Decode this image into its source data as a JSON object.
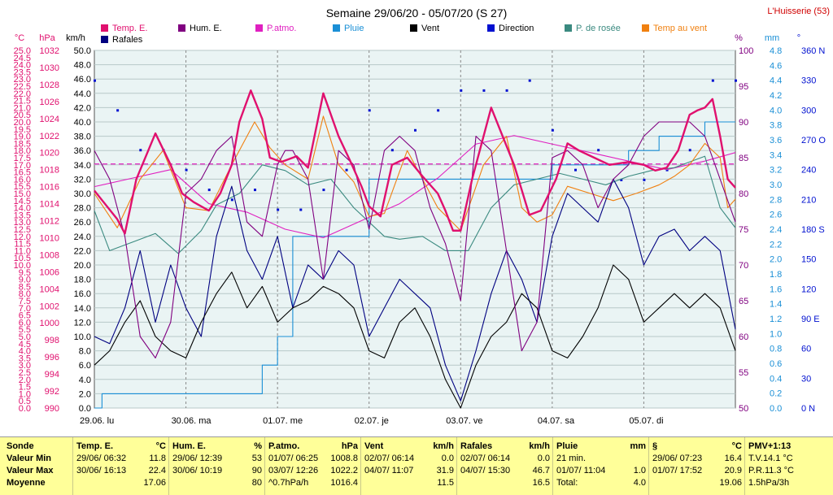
{
  "header": {
    "title": "Semaine 29/06/20 - 05/07/20 (S 27)",
    "station": "L'Huisserie (53)"
  },
  "axis_units": [
    "°C",
    "hPa",
    "km/h",
    "%",
    "mm",
    "°"
  ],
  "legend": [
    {
      "label": "Temp. E.",
      "color": "#e0106e"
    },
    {
      "label": "Hum. E.",
      "color": "#800080"
    },
    {
      "label": "P.atmo.",
      "color": "#e020c0"
    },
    {
      "label": "Pluie",
      "color": "#1a8fd6"
    },
    {
      "label": "Vent",
      "color": "#000000"
    },
    {
      "label": "Direction",
      "color": "#0010d0"
    },
    {
      "label": "P. de rosée",
      "color": "#3b8a80"
    },
    {
      "label": "Temp au vent",
      "color": "#f08010"
    },
    {
      "label": "Rafales",
      "color": "#000080"
    }
  ],
  "chart_data": {
    "type": "line",
    "x_labels": [
      "29.06. lu",
      "30.06. ma",
      "01.07. me",
      "02.07. je",
      "03.07. ve",
      "04.07. sa",
      "05.07. di"
    ],
    "xlim": [
      0,
      168
    ],
    "axes": {
      "temp_c": {
        "min": 0.0,
        "max": 25.0,
        "step": 0.5,
        "ticks": [
          "0.0",
          "0.5",
          "1.0",
          "1.5",
          "2.0",
          "2.5",
          "3.0",
          "3.5",
          "4.0",
          "4.5",
          "5.0",
          "5.5",
          "6.0",
          "6.5",
          "7.0",
          "7.5",
          "8.0",
          "8.5",
          "9.0",
          "9.5",
          "10.0",
          "10.5",
          "11.0",
          "11.5",
          "12.0",
          "12.5",
          "13.0",
          "13.5",
          "14.0",
          "14.5",
          "15.0",
          "15.5",
          "16.0",
          "16.5",
          "17.0",
          "17.5",
          "18.0",
          "18.5",
          "19.0",
          "19.5",
          "20.0",
          "20.5",
          "21.0",
          "21.5",
          "22.0",
          "22.5",
          "23.0",
          "23.5",
          "24.0",
          "24.5",
          "25.0"
        ]
      },
      "pressure_hpa": {
        "min": 990,
        "max": 1032,
        "ticks": [
          "990",
          "992",
          "994",
          "996",
          "998",
          "1000",
          "1002",
          "1004",
          "1006",
          "1008",
          "1010",
          "1012",
          "1014",
          "1016",
          "1018",
          "1020",
          "1022",
          "1024",
          "1026",
          "1028",
          "1030",
          "1032"
        ]
      },
      "wind_kmh": {
        "min": 0.0,
        "max": 50.0,
        "ticks": [
          "0.0",
          "2.0",
          "4.0",
          "6.0",
          "8.0",
          "10.0",
          "12.0",
          "14.0",
          "16.0",
          "18.0",
          "20.0",
          "22.0",
          "24.0",
          "26.0",
          "28.0",
          "30.0",
          "32.0",
          "34.0",
          "36.0",
          "38.0",
          "40.0",
          "42.0",
          "44.0",
          "46.0",
          "48.0",
          "50.0"
        ]
      },
      "humidity_pct": {
        "min": 50,
        "max": 100,
        "ticks": [
          "50",
          "55",
          "60",
          "65",
          "70",
          "75",
          "80",
          "85",
          "90",
          "95",
          "100"
        ]
      },
      "rain_mm": {
        "min": 0.0,
        "max": 5.0,
        "ticks": [
          "0.0",
          "0.2",
          "0.4",
          "0.6",
          "0.8",
          "1.0",
          "1.2",
          "1.4",
          "1.6",
          "1.8",
          "2.0",
          "2.2",
          "2.4",
          "2.6",
          "2.8",
          "3.0",
          "3.2",
          "3.4",
          "3.6",
          "3.8",
          "4.0",
          "4.2",
          "4.4",
          "4.6",
          "4.8"
        ]
      },
      "direction_deg": {
        "min": 0,
        "max": 360,
        "ticks": [
          "0 N",
          "30",
          "60",
          "90 E",
          "120",
          "150",
          "180 S",
          "210",
          "240",
          "270 O",
          "300",
          "330",
          "360 N"
        ]
      }
    },
    "mean_temp_c": 17.06,
    "series": [
      {
        "name": "Temp. E.",
        "axis": "temp_c",
        "x": [
          0,
          6,
          8,
          11,
          16,
          20,
          23,
          26,
          30,
          33,
          36,
          38,
          41,
          44,
          46,
          49,
          53,
          56,
          60,
          64,
          67,
          70,
          72,
          75,
          78,
          82,
          86,
          90,
          92,
          94,
          96,
          99,
          104,
          110,
          114,
          117,
          121,
          124,
          127,
          131,
          135,
          140,
          144,
          147,
          150,
          153,
          156,
          158,
          160,
          162,
          164,
          166,
          168
        ],
        "y": [
          15.2,
          13.2,
          12.2,
          16.0,
          19.2,
          17.0,
          15.0,
          14.4,
          13.8,
          15.0,
          17.0,
          20.0,
          22.2,
          20.2,
          17.5,
          17.2,
          17.6,
          16.8,
          22.0,
          19.0,
          17.3,
          15.5,
          14.1,
          13.4,
          17.0,
          17.5,
          16.2,
          15.0,
          13.8,
          12.4,
          12.4,
          16.0,
          21.0,
          17.0,
          13.5,
          13.8,
          16.0,
          18.5,
          18.0,
          17.5,
          17.0,
          17.2,
          17.0,
          16.6,
          16.8,
          18.0,
          20.5,
          20.8,
          21.0,
          21.6,
          19.0,
          16.0,
          15.4
        ]
      },
      {
        "name": "Hum. E.",
        "axis": "humidity_pct",
        "x": [
          0,
          4,
          8,
          12,
          16,
          20,
          24,
          28,
          32,
          36,
          40,
          44,
          48,
          50,
          52,
          56,
          60,
          64,
          68,
          72,
          76,
          80,
          84,
          88,
          92,
          96,
          100,
          104,
          108,
          112,
          116,
          120,
          124,
          128,
          132,
          136,
          140,
          144,
          148,
          152,
          156,
          160,
          164,
          168
        ],
        "y": [
          86,
          82,
          74,
          60,
          57,
          62,
          80,
          82,
          86,
          88,
          76,
          74,
          84,
          86,
          86,
          82,
          68,
          86,
          84,
          75,
          86,
          88,
          86,
          78,
          73,
          65,
          88,
          86,
          72,
          58,
          62,
          85,
          86,
          84,
          78,
          82,
          84,
          88,
          90,
          90,
          90,
          88,
          82,
          76
        ]
      },
      {
        "name": "P.atmo.",
        "axis": "pressure_hpa",
        "x": [
          0,
          10,
          20,
          30,
          40,
          50,
          60,
          70,
          80,
          90,
          100,
          110,
          120,
          130,
          140,
          150,
          160,
          168
        ],
        "y": [
          1016,
          1017,
          1018,
          1014,
          1013,
          1011,
          1010,
          1012,
          1014,
          1017,
          1021,
          1022,
          1021,
          1020,
          1019,
          1018,
          1019,
          1020
        ]
      },
      {
        "name": "Pluie",
        "axis": "rain_mm",
        "x": [
          0,
          2,
          40,
          42,
          44,
          48,
          52,
          58,
          64,
          68,
          72,
          76,
          84,
          90,
          100,
          110,
          120,
          124,
          128,
          140,
          144,
          148,
          152,
          160,
          168
        ],
        "y": [
          0.0,
          0.2,
          0.2,
          0.2,
          0.6,
          1.0,
          2.4,
          2.4,
          2.4,
          2.4,
          3.2,
          3.2,
          3.2,
          3.2,
          3.2,
          3.2,
          3.4,
          3.4,
          3.4,
          3.6,
          3.6,
          3.8,
          3.8,
          4.0,
          4.0
        ]
      },
      {
        "name": "Vent",
        "axis": "wind_kmh",
        "x": [
          0,
          4,
          8,
          12,
          16,
          20,
          24,
          28,
          32,
          36,
          40,
          44,
          48,
          52,
          56,
          60,
          64,
          68,
          72,
          76,
          80,
          84,
          88,
          92,
          96,
          100,
          104,
          108,
          112,
          116,
          120,
          124,
          128,
          132,
          136,
          140,
          144,
          148,
          152,
          156,
          160,
          164,
          168
        ],
        "y": [
          6,
          8,
          12,
          15,
          10,
          8,
          7,
          12,
          16,
          19,
          14,
          17,
          12,
          14,
          15,
          17,
          16,
          14,
          8,
          7,
          12,
          14,
          10,
          4,
          0,
          6,
          10,
          12,
          16,
          14,
          8,
          7,
          10,
          14,
          20,
          18,
          12,
          14,
          16,
          14,
          16,
          14,
          8
        ]
      },
      {
        "name": "Direction",
        "axis": "direction_deg",
        "x": [
          0,
          6,
          12,
          18,
          24,
          30,
          36,
          42,
          48,
          54,
          60,
          66,
          72,
          78,
          84,
          90,
          96,
          102,
          108,
          114,
          120,
          126,
          132,
          138,
          144,
          150,
          156,
          162,
          168
        ],
        "y": [
          330,
          300,
          260,
          260,
          240,
          220,
          210,
          220,
          200,
          200,
          220,
          240,
          300,
          260,
          280,
          300,
          320,
          320,
          320,
          330,
          280,
          240,
          260,
          230,
          230,
          240,
          260,
          330,
          330
        ]
      },
      {
        "name": "P. de rosée",
        "axis": "temp_c",
        "x": [
          0,
          4,
          10,
          16,
          22,
          28,
          32,
          38,
          44,
          50,
          56,
          62,
          68,
          72,
          76,
          80,
          86,
          92,
          98,
          104,
          110,
          116,
          122,
          128,
          134,
          140,
          146,
          152,
          156,
          160,
          164,
          168
        ],
        "y": [
          13.8,
          11.0,
          11.6,
          12.2,
          10.8,
          12.4,
          14.2,
          15.0,
          17.0,
          16.6,
          15.6,
          16.0,
          14.0,
          13.0,
          12.0,
          11.8,
          12.0,
          11.0,
          11.0,
          14.0,
          15.6,
          16.0,
          16.4,
          16.0,
          15.6,
          16.2,
          16.6,
          16.8,
          17.2,
          17.6,
          14.0,
          12.6
        ]
      },
      {
        "name": "Temp au vent",
        "axis": "temp_c",
        "x": [
          0,
          6,
          12,
          18,
          24,
          30,
          36,
          42,
          46,
          50,
          56,
          60,
          64,
          68,
          72,
          76,
          82,
          86,
          90,
          96,
          102,
          108,
          112,
          116,
          120,
          124,
          130,
          136,
          142,
          148,
          152,
          156,
          160,
          164,
          166,
          168
        ],
        "y": [
          15.0,
          12.6,
          16.0,
          18.0,
          14.0,
          13.8,
          17.0,
          20.0,
          18.2,
          17.0,
          16.0,
          20.4,
          17.0,
          15.8,
          13.4,
          13.6,
          18.0,
          16.0,
          14.0,
          12.4,
          17.0,
          19.0,
          14.0,
          13.0,
          13.5,
          15.5,
          15.0,
          14.5,
          15.0,
          15.6,
          16.2,
          17.0,
          18.5,
          17.5,
          14.0,
          14.6
        ]
      },
      {
        "name": "Rafales",
        "axis": "wind_kmh",
        "x": [
          0,
          4,
          8,
          12,
          16,
          20,
          24,
          28,
          32,
          36,
          40,
          44,
          48,
          52,
          56,
          60,
          64,
          68,
          72,
          76,
          80,
          84,
          88,
          92,
          96,
          100,
          104,
          108,
          112,
          116,
          120,
          124,
          128,
          132,
          136,
          140,
          144,
          148,
          152,
          156,
          160,
          164,
          168
        ],
        "y": [
          10,
          9,
          14,
          22,
          12,
          20,
          14,
          10,
          24,
          31,
          22,
          18,
          24,
          14,
          20,
          18,
          22,
          20,
          10,
          14,
          18,
          16,
          14,
          6,
          1,
          8,
          16,
          22,
          18,
          12,
          24,
          30,
          28,
          26,
          32,
          28,
          20,
          24,
          25,
          22,
          24,
          22,
          11
        ]
      }
    ]
  },
  "summary": {
    "row_labels": [
      "Sonde",
      "Valeur Min",
      "Valeur Max",
      "Moyenne"
    ],
    "columns": [
      {
        "title": "Temp. E.",
        "unit": "°C",
        "rows": [
          [
            "29/06/ 06:32",
            "11.8"
          ],
          [
            "30/06/ 16:13",
            "22.4"
          ],
          [
            "",
            "17.06"
          ]
        ]
      },
      {
        "title": "Hum. E.",
        "unit": "%",
        "rows": [
          [
            "29/06/ 12:39",
            "53"
          ],
          [
            "30/06/ 10:19",
            "90"
          ],
          [
            "",
            "80"
          ]
        ]
      },
      {
        "title": "P.atmo.",
        "unit": "hPa",
        "rows": [
          [
            "01/07/ 06:25",
            "1008.8"
          ],
          [
            "03/07/ 12:26",
            "1022.2"
          ],
          [
            "^0.7hPa/h",
            "1016.4"
          ]
        ]
      },
      {
        "title": "Vent",
        "unit": "km/h",
        "rows": [
          [
            "02/07/ 06:14",
            "0.0"
          ],
          [
            "04/07/ 11:07",
            "31.9"
          ],
          [
            "",
            "11.5"
          ]
        ]
      },
      {
        "title": "Rafales",
        "unit": "km/h",
        "rows": [
          [
            "02/07/ 06:14",
            "0.0"
          ],
          [
            "04/07/ 15:30",
            "46.7"
          ],
          [
            "",
            "16.5"
          ]
        ]
      },
      {
        "title": "Pluie",
        "unit": "mm",
        "rows": [
          [
            "21 min.",
            ""
          ],
          [
            "01/07/ 11:04",
            "1.0"
          ],
          [
            "Total:",
            "4.0"
          ]
        ]
      },
      {
        "title": "§",
        "unit": "°C",
        "rows": [
          [
            "29/06/ 07:23",
            "16.4"
          ],
          [
            "01/07/ 17:52",
            "20.9"
          ],
          [
            "",
            "19.06"
          ]
        ]
      },
      {
        "title": "PMV+1:13",
        "unit": "",
        "rows": [
          [
            "T.V.14.1 °C",
            ""
          ],
          [
            "P.R.11.3 °C",
            ""
          ],
          [
            "1.5hPa/3h",
            ""
          ]
        ]
      }
    ]
  }
}
